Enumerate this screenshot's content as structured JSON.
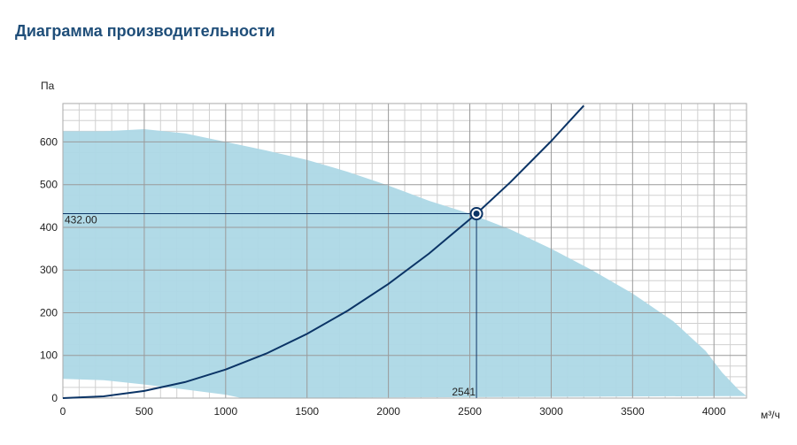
{
  "page": {
    "title": "Диаграмма производительности"
  },
  "chart_data": {
    "type": "line",
    "title": "Диаграмма производительности",
    "xlabel": "м³/ч",
    "ylabel": "Па",
    "xlim": [
      0,
      4200
    ],
    "ylim": [
      0,
      690
    ],
    "xticks": [
      0,
      500,
      1000,
      1500,
      2000,
      2500,
      3000,
      3500,
      4000
    ],
    "yticks": [
      0,
      100,
      200,
      300,
      400,
      500,
      600
    ],
    "grid": true,
    "colors": {
      "operating_area": "#add8e6",
      "system_curve": "#0b3466",
      "grid_major": "#9a9a9a",
      "grid_minor": "#d0d0d0"
    },
    "operating_area": {
      "upper": [
        [
          0,
          625
        ],
        [
          250,
          625
        ],
        [
          500,
          630
        ],
        [
          750,
          620
        ],
        [
          1000,
          600
        ],
        [
          1250,
          580
        ],
        [
          1500,
          558
        ],
        [
          1750,
          530
        ],
        [
          2000,
          498
        ],
        [
          2250,
          462
        ],
        [
          2500,
          432
        ],
        [
          2750,
          395
        ],
        [
          3000,
          350
        ],
        [
          3250,
          300
        ],
        [
          3500,
          245
        ],
        [
          3750,
          180
        ],
        [
          3950,
          110
        ],
        [
          4050,
          60
        ],
        [
          4150,
          20
        ],
        [
          4200,
          5
        ]
      ],
      "lower": [
        [
          0,
          45
        ],
        [
          250,
          42
        ],
        [
          500,
          32
        ],
        [
          750,
          20
        ],
        [
          1000,
          8
        ],
        [
          1100,
          0
        ]
      ]
    },
    "system_curve": {
      "points": [
        [
          0,
          0
        ],
        [
          250,
          4.2
        ],
        [
          500,
          16.7
        ],
        [
          750,
          37.6
        ],
        [
          1000,
          66.9
        ],
        [
          1250,
          104.5
        ],
        [
          1500,
          150.5
        ],
        [
          1750,
          204.9
        ],
        [
          2000,
          267.6
        ],
        [
          2250,
          338.7
        ],
        [
          2541,
          432
        ],
        [
          2750,
          506
        ],
        [
          3000,
          602
        ],
        [
          3200,
          685
        ]
      ]
    },
    "operating_point": {
      "x": 2541,
      "y": 432,
      "x_label": "2541",
      "y_label": "432.00"
    }
  }
}
